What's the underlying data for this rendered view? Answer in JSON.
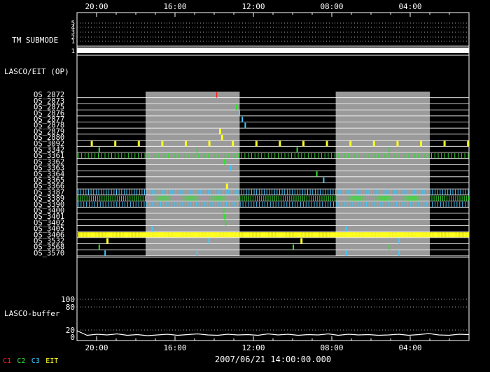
{
  "chart_data": {
    "type": "timeline",
    "time_axis": {
      "direction": "reversed",
      "tick_labels": [
        "20:00",
        "16:00",
        "12:00",
        "08:00",
        "04:00"
      ],
      "reference_time": "2007/06/21 14:00:00.000"
    },
    "shaded_periods_hours_from_left": [
      [
        3.5,
        8.3
      ],
      [
        13.2,
        18.0
      ]
    ],
    "tm_submode": {
      "label": "TM SUBMODE",
      "levels": [
        "5",
        "4",
        "3",
        "2",
        "1"
      ],
      "active_level": "1"
    },
    "lasco_eit_label": "LASCO/EIT (OP)",
    "rows": [
      {
        "name": "OS_2872",
        "events": [
          {
            "t": 7.1,
            "c": "C1"
          }
        ]
      },
      {
        "name": "OS_2873",
        "events": []
      },
      {
        "name": "OS_2875",
        "events": [
          {
            "t": 8.1,
            "c": "C2"
          }
        ]
      },
      {
        "name": "OS_2876",
        "events": [
          {
            "t": 8.25,
            "c": "C3"
          }
        ]
      },
      {
        "name": "OS_2877",
        "events": [
          {
            "t": 8.4,
            "c": "C3"
          }
        ]
      },
      {
        "name": "OS_2878",
        "events": [
          {
            "t": 8.55,
            "c": "C3"
          }
        ]
      },
      {
        "name": "OS_2879",
        "events": [
          {
            "t": 7.25,
            "c": "EIT"
          }
        ]
      },
      {
        "name": "OS_2880",
        "events": [
          {
            "t": 7.35,
            "c": "EIT"
          }
        ]
      },
      {
        "name": "OS_3092",
        "events": [
          {
            "t": 0.7,
            "c": "EIT"
          },
          {
            "t": 1.9,
            "c": "EIT"
          },
          {
            "t": 3.1,
            "c": "EIT"
          },
          {
            "t": 4.3,
            "c": "EIT"
          },
          {
            "t": 5.5,
            "c": "EIT"
          },
          {
            "t": 6.7,
            "c": "EIT"
          },
          {
            "t": 7.9,
            "c": "EIT"
          },
          {
            "t": 9.1,
            "c": "EIT"
          },
          {
            "t": 10.3,
            "c": "EIT"
          },
          {
            "t": 11.5,
            "c": "EIT"
          },
          {
            "t": 12.7,
            "c": "EIT"
          },
          {
            "t": 13.9,
            "c": "EIT"
          },
          {
            "t": 15.1,
            "c": "EIT"
          },
          {
            "t": 16.3,
            "c": "EIT"
          },
          {
            "t": 17.5,
            "c": "EIT"
          },
          {
            "t": 18.7,
            "c": "EIT"
          },
          {
            "t": 19.9,
            "c": "EIT"
          }
        ]
      },
      {
        "name": "OS_3342",
        "events": [
          {
            "t": 1.1,
            "c": "C2"
          },
          {
            "t": 6.1,
            "c": "C2"
          },
          {
            "t": 11.2,
            "c": "C2"
          },
          {
            "t": 15.9,
            "c": "C2"
          }
        ]
      },
      {
        "name": "OS_3361",
        "events": [],
        "dense": {
          "c": "C2",
          "step": 0.17
        }
      },
      {
        "name": "OS_3362",
        "events": [
          {
            "t": 7.5,
            "c": "C2"
          }
        ]
      },
      {
        "name": "OS_3363",
        "events": [
          {
            "t": 7.8,
            "c": "C3"
          }
        ]
      },
      {
        "name": "OS_3364",
        "events": [
          {
            "t": 12.2,
            "c": "C2"
          }
        ]
      },
      {
        "name": "OS_3365",
        "events": [
          {
            "t": 12.55,
            "c": "C3"
          }
        ]
      },
      {
        "name": "OS_3366",
        "events": [
          {
            "t": 7.6,
            "c": "EIT"
          }
        ]
      },
      {
        "name": "OS_3387",
        "events": [],
        "dense": {
          "c": "C3",
          "step": 0.13
        }
      },
      {
        "name": "OS_3389",
        "events": [],
        "dense": {
          "c": "C2",
          "step": 0.11
        }
      },
      {
        "name": "OS_3390",
        "events": [],
        "dense": {
          "c": "C3",
          "step": 0.14
        }
      },
      {
        "name": "OS_3400",
        "events": [
          {
            "t": 7.45,
            "c": "C2"
          }
        ]
      },
      {
        "name": "OS_3401",
        "events": [
          {
            "t": 7.5,
            "c": "C2"
          }
        ]
      },
      {
        "name": "OS_3402",
        "events": [
          {
            "t": 7.55,
            "c": "C2"
          }
        ]
      },
      {
        "name": "OS_3405",
        "events": [
          {
            "t": 3.8,
            "c": "C3"
          },
          {
            "t": 13.7,
            "c": "C3"
          }
        ]
      },
      {
        "name": "OS_3406",
        "events": [],
        "dense": {
          "c": "EIT",
          "step": 0.07
        }
      },
      {
        "name": "OS_3532",
        "events": [
          {
            "t": 1.5,
            "c": "EIT"
          },
          {
            "t": 6.7,
            "c": "C3"
          },
          {
            "t": 11.4,
            "c": "EIT"
          },
          {
            "t": 16.4,
            "c": "C3"
          }
        ]
      },
      {
        "name": "OS_3568",
        "events": [
          {
            "t": 1.1,
            "c": "C2"
          },
          {
            "t": 11.0,
            "c": "C2"
          },
          {
            "t": 15.9,
            "c": "C2"
          }
        ]
      },
      {
        "name": "OS_3570",
        "events": [
          {
            "t": 1.4,
            "c": "C3"
          },
          {
            "t": 6.1,
            "c": "C3"
          },
          {
            "t": 13.7,
            "c": "C3"
          },
          {
            "t": 16.4,
            "c": "C3"
          }
        ]
      }
    ],
    "lasco_buffer": {
      "label": "LASCO-buffer",
      "ticks": [
        "100",
        "80",
        "20",
        "0"
      ],
      "values": [
        18,
        5,
        8,
        6,
        9,
        5,
        7,
        4,
        6,
        8,
        5,
        7,
        9,
        6,
        5,
        8,
        6,
        7,
        5,
        9,
        6,
        8,
        5,
        7,
        6,
        9,
        5,
        8,
        6,
        7,
        5,
        6,
        8,
        5,
        7,
        10,
        6,
        5,
        8,
        7
      ]
    },
    "legend": [
      {
        "label": "C1",
        "color": "#ff2020"
      },
      {
        "label": "C2",
        "color": "#30e030"
      },
      {
        "label": "C3",
        "color": "#40c8ff"
      },
      {
        "label": "EIT",
        "color": "#ffff20"
      }
    ]
  }
}
